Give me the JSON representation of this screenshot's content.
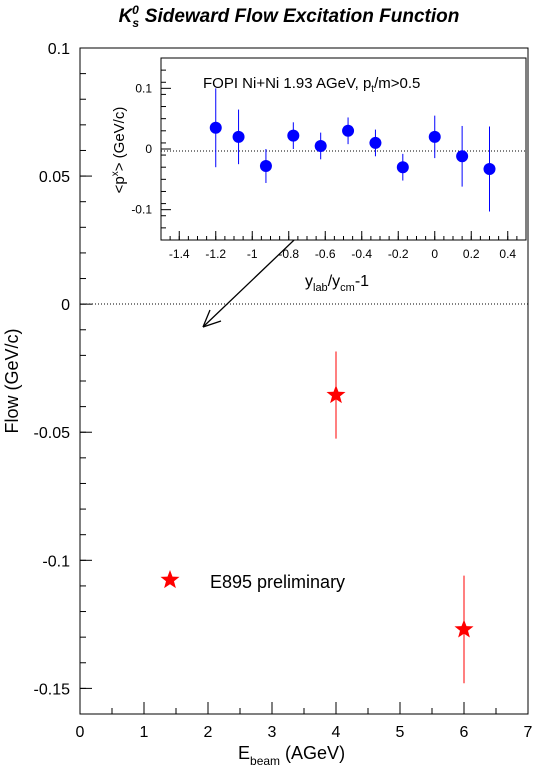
{
  "title": {
    "symbol": "K",
    "sup": "0",
    "sub": "s",
    "text": "Sideward Flow Excitation Function"
  },
  "chart_data": [
    {
      "type": "scatter",
      "xlabel": {
        "base": "E",
        "sub": "beam",
        "rest": "(AGeV)"
      },
      "ylabel": "Flow (GeV/c)",
      "xlim": [
        0,
        7
      ],
      "ylim": [
        -0.16,
        0.1
      ],
      "x_ticks": [
        0,
        1,
        2,
        3,
        4,
        5,
        6,
        7
      ],
      "x_tick_labels": [
        "0",
        "1",
        "2",
        "3",
        "4",
        "5",
        "6",
        "7"
      ],
      "y_ticks": [
        -0.15,
        -0.1,
        -0.05,
        0,
        0.05,
        0.1
      ],
      "y_tick_labels": [
        "-0.15",
        "-0.1",
        "-0.05",
        "0",
        "0.05",
        "0.1"
      ],
      "zero_line": "dotted",
      "grid": false,
      "series": [
        {
          "name": "E895 preliminary",
          "marker": "star",
          "color": "#ff0000",
          "points": [
            {
              "x": 4,
              "y": -0.0355,
              "err": 0.017
            },
            {
              "x": 6,
              "y": -0.127,
              "err": 0.021
            }
          ]
        }
      ],
      "legend": {
        "position": "lower-left",
        "label": "E895 preliminary"
      }
    },
    {
      "type": "scatter",
      "inset": true,
      "title": "FOPI Ni+Ni 1.93 AGeV, p",
      "title_sub": "t",
      "title_rest": "/m>0.5",
      "xlabel": {
        "a": "y",
        "a_sub": "lab",
        "b": "/y",
        "b_sub": "cm",
        "c": "-1"
      },
      "ylabel": {
        "a": "<p",
        "sup": "x",
        "b": "> (GeV/c)"
      },
      "xlim": [
        -1.5,
        0.5
      ],
      "ylim": [
        -0.15,
        0.15
      ],
      "x_ticks": [
        -1.4,
        -1.2,
        -1,
        -0.8,
        -0.6,
        -0.4,
        -0.2,
        0,
        0.2,
        0.4
      ],
      "x_tick_labels": [
        "-1.4",
        "-1.2",
        "-1",
        "-0.8",
        "-0.6",
        "-0.4",
        "-0.2",
        "0",
        "0.2",
        "0.4"
      ],
      "y_ticks": [
        -0.1,
        0,
        0.1
      ],
      "y_tick_labels": [
        "-0.1",
        "0",
        "0.1"
      ],
      "zero_line": "dotted",
      "grid": false,
      "series": [
        {
          "marker": "circle",
          "color": "#0000ff",
          "points": [
            {
              "x": -1.2,
              "y": 0.035,
              "err": 0.065
            },
            {
              "x": -1.075,
              "y": 0.02,
              "err": 0.045
            },
            {
              "x": -0.925,
              "y": -0.028,
              "err": 0.028
            },
            {
              "x": -0.775,
              "y": 0.022,
              "err": 0.022
            },
            {
              "x": -0.625,
              "y": 0.005,
              "err": 0.022
            },
            {
              "x": -0.475,
              "y": 0.03,
              "err": 0.022
            },
            {
              "x": -0.325,
              "y": 0.01,
              "err": 0.022
            },
            {
              "x": -0.175,
              "y": -0.03,
              "err": 0.022
            },
            {
              "x": 0,
              "y": 0.02,
              "err": 0.035
            },
            {
              "x": 0.15,
              "y": -0.012,
              "err": 0.05
            },
            {
              "x": 0.3,
              "y": -0.033,
              "err": 0.07
            }
          ]
        }
      ]
    }
  ]
}
